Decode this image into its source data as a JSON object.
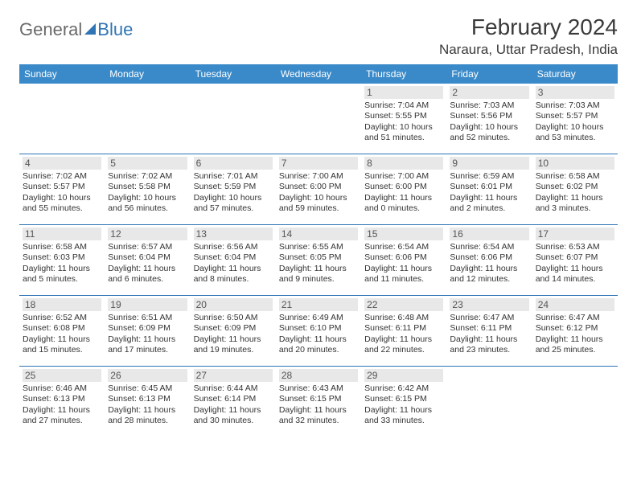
{
  "logo": {
    "part1": "General",
    "part2": "Blue"
  },
  "title": "February 2024",
  "location": "Naraura, Uttar Pradesh, India",
  "header_bg": "#3a8ac9",
  "header_fg": "#ffffff",
  "rule_color": "#2f74b5",
  "daynum_bg": "#e8e8e8",
  "weekdays": [
    "Sunday",
    "Monday",
    "Tuesday",
    "Wednesday",
    "Thursday",
    "Friday",
    "Saturday"
  ],
  "weeks": [
    [
      null,
      null,
      null,
      null,
      {
        "day": "1",
        "sunrise": "Sunrise: 7:04 AM",
        "sunset": "Sunset: 5:55 PM",
        "daylight1": "Daylight: 10 hours",
        "daylight2": "and 51 minutes."
      },
      {
        "day": "2",
        "sunrise": "Sunrise: 7:03 AM",
        "sunset": "Sunset: 5:56 PM",
        "daylight1": "Daylight: 10 hours",
        "daylight2": "and 52 minutes."
      },
      {
        "day": "3",
        "sunrise": "Sunrise: 7:03 AM",
        "sunset": "Sunset: 5:57 PM",
        "daylight1": "Daylight: 10 hours",
        "daylight2": "and 53 minutes."
      }
    ],
    [
      {
        "day": "4",
        "sunrise": "Sunrise: 7:02 AM",
        "sunset": "Sunset: 5:57 PM",
        "daylight1": "Daylight: 10 hours",
        "daylight2": "and 55 minutes."
      },
      {
        "day": "5",
        "sunrise": "Sunrise: 7:02 AM",
        "sunset": "Sunset: 5:58 PM",
        "daylight1": "Daylight: 10 hours",
        "daylight2": "and 56 minutes."
      },
      {
        "day": "6",
        "sunrise": "Sunrise: 7:01 AM",
        "sunset": "Sunset: 5:59 PM",
        "daylight1": "Daylight: 10 hours",
        "daylight2": "and 57 minutes."
      },
      {
        "day": "7",
        "sunrise": "Sunrise: 7:00 AM",
        "sunset": "Sunset: 6:00 PM",
        "daylight1": "Daylight: 10 hours",
        "daylight2": "and 59 minutes."
      },
      {
        "day": "8",
        "sunrise": "Sunrise: 7:00 AM",
        "sunset": "Sunset: 6:00 PM",
        "daylight1": "Daylight: 11 hours",
        "daylight2": "and 0 minutes."
      },
      {
        "day": "9",
        "sunrise": "Sunrise: 6:59 AM",
        "sunset": "Sunset: 6:01 PM",
        "daylight1": "Daylight: 11 hours",
        "daylight2": "and 2 minutes."
      },
      {
        "day": "10",
        "sunrise": "Sunrise: 6:58 AM",
        "sunset": "Sunset: 6:02 PM",
        "daylight1": "Daylight: 11 hours",
        "daylight2": "and 3 minutes."
      }
    ],
    [
      {
        "day": "11",
        "sunrise": "Sunrise: 6:58 AM",
        "sunset": "Sunset: 6:03 PM",
        "daylight1": "Daylight: 11 hours",
        "daylight2": "and 5 minutes."
      },
      {
        "day": "12",
        "sunrise": "Sunrise: 6:57 AM",
        "sunset": "Sunset: 6:04 PM",
        "daylight1": "Daylight: 11 hours",
        "daylight2": "and 6 minutes."
      },
      {
        "day": "13",
        "sunrise": "Sunrise: 6:56 AM",
        "sunset": "Sunset: 6:04 PM",
        "daylight1": "Daylight: 11 hours",
        "daylight2": "and 8 minutes."
      },
      {
        "day": "14",
        "sunrise": "Sunrise: 6:55 AM",
        "sunset": "Sunset: 6:05 PM",
        "daylight1": "Daylight: 11 hours",
        "daylight2": "and 9 minutes."
      },
      {
        "day": "15",
        "sunrise": "Sunrise: 6:54 AM",
        "sunset": "Sunset: 6:06 PM",
        "daylight1": "Daylight: 11 hours",
        "daylight2": "and 11 minutes."
      },
      {
        "day": "16",
        "sunrise": "Sunrise: 6:54 AM",
        "sunset": "Sunset: 6:06 PM",
        "daylight1": "Daylight: 11 hours",
        "daylight2": "and 12 minutes."
      },
      {
        "day": "17",
        "sunrise": "Sunrise: 6:53 AM",
        "sunset": "Sunset: 6:07 PM",
        "daylight1": "Daylight: 11 hours",
        "daylight2": "and 14 minutes."
      }
    ],
    [
      {
        "day": "18",
        "sunrise": "Sunrise: 6:52 AM",
        "sunset": "Sunset: 6:08 PM",
        "daylight1": "Daylight: 11 hours",
        "daylight2": "and 15 minutes."
      },
      {
        "day": "19",
        "sunrise": "Sunrise: 6:51 AM",
        "sunset": "Sunset: 6:09 PM",
        "daylight1": "Daylight: 11 hours",
        "daylight2": "and 17 minutes."
      },
      {
        "day": "20",
        "sunrise": "Sunrise: 6:50 AM",
        "sunset": "Sunset: 6:09 PM",
        "daylight1": "Daylight: 11 hours",
        "daylight2": "and 19 minutes."
      },
      {
        "day": "21",
        "sunrise": "Sunrise: 6:49 AM",
        "sunset": "Sunset: 6:10 PM",
        "daylight1": "Daylight: 11 hours",
        "daylight2": "and 20 minutes."
      },
      {
        "day": "22",
        "sunrise": "Sunrise: 6:48 AM",
        "sunset": "Sunset: 6:11 PM",
        "daylight1": "Daylight: 11 hours",
        "daylight2": "and 22 minutes."
      },
      {
        "day": "23",
        "sunrise": "Sunrise: 6:47 AM",
        "sunset": "Sunset: 6:11 PM",
        "daylight1": "Daylight: 11 hours",
        "daylight2": "and 23 minutes."
      },
      {
        "day": "24",
        "sunrise": "Sunrise: 6:47 AM",
        "sunset": "Sunset: 6:12 PM",
        "daylight1": "Daylight: 11 hours",
        "daylight2": "and 25 minutes."
      }
    ],
    [
      {
        "day": "25",
        "sunrise": "Sunrise: 6:46 AM",
        "sunset": "Sunset: 6:13 PM",
        "daylight1": "Daylight: 11 hours",
        "daylight2": "and 27 minutes."
      },
      {
        "day": "26",
        "sunrise": "Sunrise: 6:45 AM",
        "sunset": "Sunset: 6:13 PM",
        "daylight1": "Daylight: 11 hours",
        "daylight2": "and 28 minutes."
      },
      {
        "day": "27",
        "sunrise": "Sunrise: 6:44 AM",
        "sunset": "Sunset: 6:14 PM",
        "daylight1": "Daylight: 11 hours",
        "daylight2": "and 30 minutes."
      },
      {
        "day": "28",
        "sunrise": "Sunrise: 6:43 AM",
        "sunset": "Sunset: 6:15 PM",
        "daylight1": "Daylight: 11 hours",
        "daylight2": "and 32 minutes."
      },
      {
        "day": "29",
        "sunrise": "Sunrise: 6:42 AM",
        "sunset": "Sunset: 6:15 PM",
        "daylight1": "Daylight: 11 hours",
        "daylight2": "and 33 minutes."
      },
      null,
      null
    ]
  ]
}
